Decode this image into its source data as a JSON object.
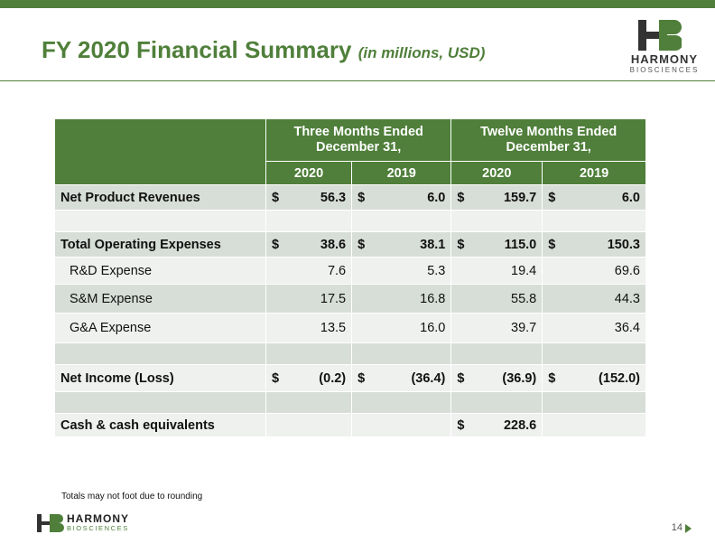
{
  "slide": {
    "title": "FY 2020 Financial Summary",
    "title_sub": "(in millions, USD)",
    "page_number": "14",
    "footnote": "Totals may not foot due to rounding",
    "accent_color": "#4f7f3a"
  },
  "logo": {
    "word": "HARMONY",
    "sub": "BIOSCIENCES"
  },
  "table": {
    "group_headers": [
      "Three Months Ended\nDecember 31,",
      "Twelve Months Ended\nDecember 31,"
    ],
    "group_header_lines": [
      [
        "Three Months Ended",
        "December 31,"
      ],
      [
        "Twelve Months Ended",
        "December 31,"
      ]
    ],
    "years": [
      "2020",
      "2019",
      "2020",
      "2019"
    ],
    "rows": [
      {
        "label": "Net Product Revenues",
        "cells": [
          [
            "$",
            "56.3"
          ],
          [
            "$",
            "6.0"
          ],
          [
            "$",
            "159.7"
          ],
          [
            "$",
            "6.0"
          ]
        ]
      },
      {
        "label": "Total Operating Expenses",
        "cells": [
          [
            "$",
            "38.6"
          ],
          [
            "$",
            "38.1"
          ],
          [
            "$",
            "115.0"
          ],
          [
            "$",
            "150.3"
          ]
        ]
      },
      {
        "label": "R&D Expense",
        "cells": [
          [
            "",
            "7.6"
          ],
          [
            "",
            "5.3"
          ],
          [
            "",
            "19.4"
          ],
          [
            "",
            "69.6"
          ]
        ]
      },
      {
        "label": "S&M Expense",
        "cells": [
          [
            "",
            "17.5"
          ],
          [
            "",
            "16.8"
          ],
          [
            "",
            "55.8"
          ],
          [
            "",
            "44.3"
          ]
        ]
      },
      {
        "label": "G&A Expense",
        "cells": [
          [
            "",
            "13.5"
          ],
          [
            "",
            "16.0"
          ],
          [
            "",
            "39.7"
          ],
          [
            "",
            "36.4"
          ]
        ]
      },
      {
        "label": "Net Income (Loss)",
        "cells": [
          [
            "$",
            "(0.2)"
          ],
          [
            "$",
            "(36.4)"
          ],
          [
            "$",
            "(36.9)"
          ],
          [
            "$",
            "(152.0)"
          ]
        ]
      },
      {
        "label": "Cash & cash equivalents",
        "cells": [
          [
            "",
            ""
          ],
          [
            "",
            ""
          ],
          [
            "$",
            "228.6"
          ],
          [
            "",
            ""
          ]
        ]
      }
    ]
  }
}
